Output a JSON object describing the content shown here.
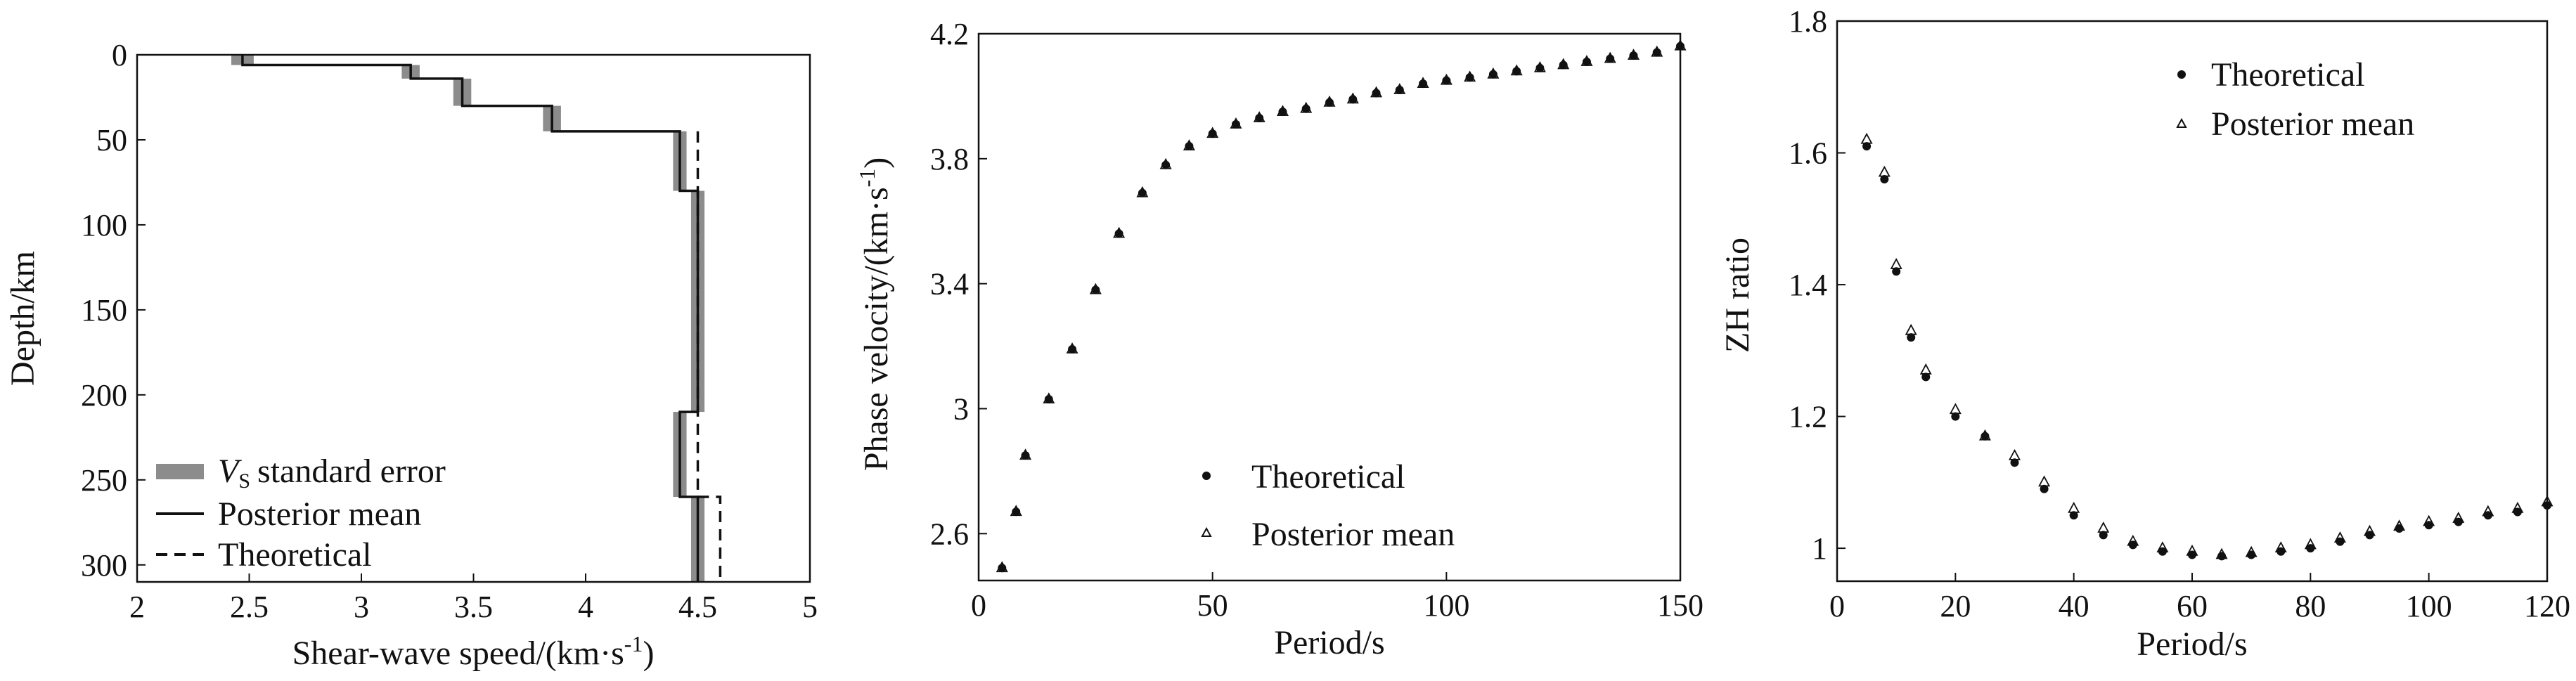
{
  "chart_data": [
    {
      "type": "line",
      "name": "vs-profile",
      "xlabel": "Shear-wave speed/(km·s-1)",
      "ylabel": "Depth/km",
      "xlim": [
        2,
        5
      ],
      "ylim": [
        0,
        310
      ],
      "y_inverted": true,
      "xticks": [
        "2",
        "2.5",
        "3",
        "3.5",
        "4",
        "4.5",
        "5"
      ],
      "yticks": [
        "0",
        "50",
        "100",
        "150",
        "200",
        "250",
        "300"
      ],
      "legend": {
        "placement": "bottom-left",
        "entries": [
          "VS standard error",
          "Posterior mean",
          "Theoretical"
        ]
      },
      "series": [
        {
          "name": "VS standard error",
          "style": "gray-band",
          "layers": [
            {
              "top": 0,
              "bottom": 6,
              "vs": 2.47,
              "err": 0.05
            },
            {
              "top": 6,
              "bottom": 14,
              "vs": 3.22,
              "err": 0.04
            },
            {
              "top": 14,
              "bottom": 30,
              "vs": 3.45,
              "err": 0.04
            },
            {
              "top": 30,
              "bottom": 45,
              "vs": 3.85,
              "err": 0.04
            },
            {
              "top": 45,
              "bottom": 80,
              "vs": 4.42,
              "err": 0.03
            },
            {
              "top": 80,
              "bottom": 210,
              "vs": 4.5,
              "err": 0.03
            },
            {
              "top": 210,
              "bottom": 260,
              "vs": 4.42,
              "err": 0.03
            },
            {
              "top": 260,
              "bottom": 310,
              "vs": 4.5,
              "err": 0.03
            }
          ]
        },
        {
          "name": "Posterior mean",
          "style": "solid",
          "layers": [
            {
              "top": 0,
              "bottom": 6,
              "vs": 2.47
            },
            {
              "top": 6,
              "bottom": 14,
              "vs": 3.22
            },
            {
              "top": 14,
              "bottom": 30,
              "vs": 3.45
            },
            {
              "top": 30,
              "bottom": 45,
              "vs": 3.85
            },
            {
              "top": 45,
              "bottom": 80,
              "vs": 4.42
            },
            {
              "top": 80,
              "bottom": 210,
              "vs": 4.5
            },
            {
              "top": 210,
              "bottom": 260,
              "vs": 4.42
            },
            {
              "top": 260,
              "bottom": 310,
              "vs": 4.5
            }
          ]
        },
        {
          "name": "Theoretical",
          "style": "dashed",
          "layers": [
            {
              "top": 45,
              "bottom": 260,
              "vs": 4.5
            },
            {
              "top": 260,
              "bottom": 310,
              "vs": 4.6
            }
          ]
        }
      ]
    },
    {
      "type": "scatter",
      "name": "phase-velocity",
      "xlabel": "Period/s",
      "ylabel": "Phase velocity/(km·s-1)",
      "xlim": [
        0,
        150
      ],
      "ylim": [
        2.45,
        4.2
      ],
      "xticks": [
        "0",
        "50",
        "100",
        "150"
      ],
      "yticks": [
        "2.6",
        "3",
        "3.4",
        "3.8",
        "4.2"
      ],
      "legend": {
        "placement": "bottom-right",
        "entries": [
          "Theoretical",
          "Posterior mean"
        ]
      },
      "x": [
        5,
        8,
        10,
        15,
        20,
        25,
        30,
        35,
        40,
        45,
        50,
        55,
        60,
        65,
        70,
        75,
        80,
        85,
        90,
        95,
        100,
        105,
        110,
        115,
        120,
        125,
        130,
        135,
        140,
        145,
        150
      ],
      "series": [
        {
          "name": "Theoretical",
          "marker": "dot",
          "values": [
            2.49,
            2.67,
            2.85,
            3.03,
            3.19,
            3.38,
            3.56,
            3.69,
            3.78,
            3.84,
            3.88,
            3.91,
            3.93,
            3.95,
            3.96,
            3.98,
            3.99,
            4.01,
            4.02,
            4.04,
            4.05,
            4.06,
            4.07,
            4.08,
            4.09,
            4.1,
            4.11,
            4.12,
            4.13,
            4.14,
            4.16
          ]
        },
        {
          "name": "Posterior mean",
          "marker": "triangle",
          "values": [
            2.49,
            2.67,
            2.85,
            3.03,
            3.19,
            3.38,
            3.56,
            3.69,
            3.78,
            3.84,
            3.88,
            3.91,
            3.93,
            3.95,
            3.96,
            3.98,
            3.99,
            4.01,
            4.02,
            4.04,
            4.05,
            4.06,
            4.07,
            4.08,
            4.09,
            4.1,
            4.11,
            4.12,
            4.13,
            4.14,
            4.16
          ]
        }
      ]
    },
    {
      "type": "scatter",
      "name": "zh-ratio",
      "xlabel": "Period/s",
      "ylabel": "ZH ratio",
      "xlim": [
        0,
        120
      ],
      "ylim": [
        0.95,
        1.8
      ],
      "xticks": [
        "0",
        "20",
        "40",
        "60",
        "80",
        "100",
        "120"
      ],
      "yticks": [
        "1",
        "1.2",
        "1.4",
        "1.6",
        "1.8"
      ],
      "legend": {
        "placement": "top-right",
        "entries": [
          "Theoretical",
          "Posterior mean"
        ]
      },
      "x": [
        5,
        8,
        10,
        12.5,
        15,
        20,
        25,
        30,
        35,
        40,
        45,
        50,
        55,
        60,
        65,
        70,
        75,
        80,
        85,
        90,
        95,
        100,
        105,
        110,
        115,
        120
      ],
      "series": [
        {
          "name": "Theoretical",
          "marker": "dot",
          "values": [
            1.61,
            1.56,
            1.42,
            1.32,
            1.26,
            1.2,
            1.17,
            1.13,
            1.09,
            1.05,
            1.02,
            1.005,
            0.995,
            0.99,
            0.988,
            0.99,
            0.995,
            1.0,
            1.01,
            1.02,
            1.03,
            1.035,
            1.04,
            1.05,
            1.055,
            1.065
          ]
        },
        {
          "name": "Posterior mean",
          "marker": "triangle",
          "values": [
            1.62,
            1.57,
            1.43,
            1.33,
            1.27,
            1.21,
            1.17,
            1.14,
            1.1,
            1.06,
            1.03,
            1.01,
            1.0,
            0.995,
            0.99,
            0.993,
            1.0,
            1.005,
            1.015,
            1.025,
            1.033,
            1.04,
            1.045,
            1.055,
            1.06,
            1.07
          ]
        }
      ]
    }
  ]
}
